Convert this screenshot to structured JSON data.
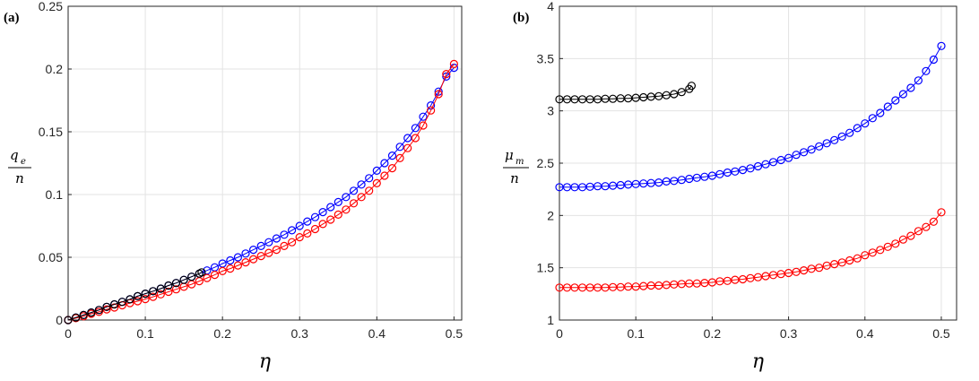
{
  "chart_data": [
    {
      "type": "line",
      "panel_label": "(a)",
      "xlabel": "η",
      "ylabel": {
        "numerator": "q",
        "subscript": "e",
        "denominator": "n"
      },
      "xlim": [
        0,
        0.51
      ],
      "ylim": [
        0,
        0.25
      ],
      "xticks": [
        "0",
        "0.1",
        "0.2",
        "0.3",
        "0.4",
        "0.5"
      ],
      "yticks": [
        "0",
        "0.05",
        "0.1",
        "0.15",
        "0.2",
        "0.25"
      ],
      "grid": true,
      "marker": "circle-open",
      "series": [
        {
          "color": "#0000ff",
          "x_start": 0,
          "x_step": 0.01,
          "values": [
            0,
            0.002,
            0.004,
            0.006,
            0.008,
            0.0105,
            0.0125,
            0.0145,
            0.0165,
            0.019,
            0.021,
            0.023,
            0.025,
            0.0275,
            0.0295,
            0.032,
            0.0345,
            0.037,
            0.0395,
            0.042,
            0.045,
            0.0475,
            0.05,
            0.053,
            0.056,
            0.059,
            0.062,
            0.065,
            0.068,
            0.0715,
            0.075,
            0.0785,
            0.082,
            0.086,
            0.09,
            0.094,
            0.098,
            0.103,
            0.108,
            0.113,
            0.119,
            0.125,
            0.131,
            0.138,
            0.145,
            0.153,
            0.162,
            0.171,
            0.182,
            0.194,
            0.201
          ]
        },
        {
          "color": "#ff0000",
          "x_start": 0,
          "x_step": 0.01,
          "values": [
            0,
            0.0015,
            0.003,
            0.005,
            0.0065,
            0.0085,
            0.01,
            0.0118,
            0.0135,
            0.015,
            0.0167,
            0.0185,
            0.0205,
            0.0225,
            0.0245,
            0.0265,
            0.0285,
            0.031,
            0.0335,
            0.036,
            0.039,
            0.041,
            0.0435,
            0.046,
            0.0485,
            0.051,
            0.0535,
            0.056,
            0.059,
            0.062,
            0.066,
            0.069,
            0.0725,
            0.0765,
            0.08,
            0.084,
            0.088,
            0.093,
            0.098,
            0.103,
            0.109,
            0.115,
            0.121,
            0.129,
            0.137,
            0.145,
            0.155,
            0.167,
            0.18,
            0.196,
            0.204
          ]
        },
        {
          "color": "#000000",
          "x_start": 0,
          "x_step": 0.01,
          "values": [
            0,
            0.002,
            0.004,
            0.006,
            0.008,
            0.0105,
            0.0125,
            0.0145,
            0.0165,
            0.019,
            0.021,
            0.023,
            0.025,
            0.0275,
            0.0295,
            0.032,
            0.0345,
            0.037
          ],
          "end_point": [
            0.173,
            0.038
          ]
        }
      ]
    },
    {
      "type": "line",
      "panel_label": "(b)",
      "xlabel": "η",
      "ylabel": {
        "numerator": "μ",
        "subscript": "m",
        "denominator": "n"
      },
      "xlim": [
        0,
        0.52
      ],
      "ylim": [
        1,
        4
      ],
      "xticks": [
        "0",
        "0.1",
        "0.2",
        "0.3",
        "0.4",
        "0.5"
      ],
      "yticks": [
        "1",
        "1.5",
        "2",
        "2.5",
        "3",
        "3.5",
        "4"
      ],
      "grid": true,
      "marker": "circle-open",
      "series": [
        {
          "color": "#000000",
          "x_start": 0,
          "x_step": 0.01,
          "values": [
            3.11,
            3.11,
            3.11,
            3.11,
            3.11,
            3.11,
            3.115,
            3.115,
            3.12,
            3.12,
            3.125,
            3.13,
            3.135,
            3.14,
            3.15,
            3.16,
            3.18,
            3.21
          ],
          "end_point": [
            0.173,
            3.24
          ]
        },
        {
          "color": "#0000ff",
          "x_start": 0,
          "x_step": 0.01,
          "values": [
            2.27,
            2.27,
            2.27,
            2.27,
            2.275,
            2.28,
            2.28,
            2.285,
            2.29,
            2.295,
            2.3,
            2.305,
            2.31,
            2.315,
            2.325,
            2.33,
            2.34,
            2.35,
            2.36,
            2.37,
            2.38,
            2.395,
            2.41,
            2.42,
            2.435,
            2.45,
            2.47,
            2.49,
            2.51,
            2.53,
            2.55,
            2.58,
            2.605,
            2.63,
            2.66,
            2.69,
            2.72,
            2.755,
            2.79,
            2.835,
            2.88,
            2.93,
            2.98,
            3.04,
            3.1,
            3.16,
            3.22,
            3.29,
            3.38,
            3.49,
            3.62
          ]
        },
        {
          "color": "#ff0000",
          "x_start": 0,
          "x_step": 0.01,
          "values": [
            1.31,
            1.31,
            1.31,
            1.31,
            1.31,
            1.31,
            1.31,
            1.315,
            1.315,
            1.32,
            1.32,
            1.325,
            1.33,
            1.33,
            1.335,
            1.34,
            1.345,
            1.35,
            1.35,
            1.355,
            1.36,
            1.37,
            1.375,
            1.385,
            1.39,
            1.4,
            1.41,
            1.42,
            1.43,
            1.44,
            1.45,
            1.46,
            1.475,
            1.49,
            1.5,
            1.52,
            1.535,
            1.55,
            1.57,
            1.59,
            1.62,
            1.645,
            1.67,
            1.7,
            1.73,
            1.77,
            1.805,
            1.85,
            1.89,
            1.94,
            2.03
          ]
        }
      ]
    }
  ]
}
